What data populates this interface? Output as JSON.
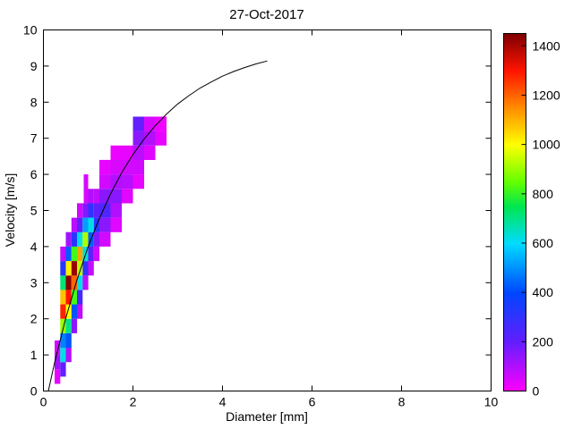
{
  "chart_data": {
    "type": "heatmap",
    "title": "27-Oct-2017",
    "xlabel": "Diameter [mm]",
    "ylabel": "Velocity [m/s]",
    "xlim": [
      0,
      10
    ],
    "ylim": [
      0,
      10
    ],
    "x_ticks": [
      0,
      2,
      4,
      6,
      8,
      10
    ],
    "y_ticks": [
      0,
      1,
      2,
      3,
      4,
      5,
      6,
      7,
      8,
      9,
      10
    ],
    "grid": false,
    "legend": "none",
    "colorbar": {
      "min": 0,
      "max": 1450,
      "ticks": [
        0,
        200,
        400,
        600,
        800,
        1000,
        1200,
        1400
      ],
      "position": "right"
    },
    "colormap_stops": [
      [
        0,
        255,
        0,
        255
      ],
      [
        200,
        100,
        30,
        255
      ],
      [
        400,
        0,
        70,
        255
      ],
      [
        600,
        0,
        220,
        255
      ],
      [
        750,
        0,
        230,
        80
      ],
      [
        850,
        100,
        255,
        0
      ],
      [
        1000,
        255,
        255,
        0
      ],
      [
        1150,
        255,
        140,
        0
      ],
      [
        1300,
        255,
        20,
        0
      ],
      [
        1450,
        128,
        0,
        0
      ]
    ],
    "cells": [
      [
        0.25,
        0.375,
        0.2,
        0.6,
        30
      ],
      [
        0.25,
        0.375,
        0.6,
        1.0,
        120
      ],
      [
        0.25,
        0.375,
        1.0,
        1.4,
        60
      ],
      [
        0.375,
        0.5,
        0.4,
        0.8,
        200
      ],
      [
        0.375,
        0.5,
        0.8,
        1.2,
        620
      ],
      [
        0.375,
        0.5,
        1.2,
        1.6,
        480
      ],
      [
        0.375,
        0.5,
        1.6,
        2.0,
        900
      ],
      [
        0.375,
        0.5,
        2.0,
        2.4,
        1280
      ],
      [
        0.375,
        0.5,
        2.4,
        2.8,
        1080
      ],
      [
        0.375,
        0.5,
        2.8,
        3.2,
        720
      ],
      [
        0.375,
        0.5,
        3.2,
        3.6,
        320
      ],
      [
        0.375,
        0.5,
        3.6,
        4.0,
        80
      ],
      [
        0.5,
        0.625,
        0.8,
        1.2,
        100
      ],
      [
        0.5,
        0.625,
        1.2,
        1.6,
        420
      ],
      [
        0.5,
        0.625,
        1.6,
        2.0,
        700
      ],
      [
        0.5,
        0.625,
        2.0,
        2.4,
        1000
      ],
      [
        0.5,
        0.625,
        2.4,
        2.8,
        1300
      ],
      [
        0.5,
        0.625,
        2.8,
        3.2,
        1440
      ],
      [
        0.5,
        0.625,
        3.2,
        3.6,
        1020
      ],
      [
        0.5,
        0.625,
        3.6,
        4.0,
        430
      ],
      [
        0.5,
        0.625,
        4.0,
        4.4,
        120
      ],
      [
        0.625,
        0.75,
        1.6,
        2.0,
        150
      ],
      [
        0.625,
        0.75,
        2.0,
        2.4,
        420
      ],
      [
        0.625,
        0.75,
        2.4,
        2.8,
        820
      ],
      [
        0.625,
        0.75,
        2.8,
        3.2,
        1200
      ],
      [
        0.625,
        0.75,
        3.2,
        3.6,
        1420
      ],
      [
        0.625,
        0.75,
        3.6,
        4.0,
        820
      ],
      [
        0.625,
        0.75,
        4.0,
        4.4,
        320
      ],
      [
        0.625,
        0.75,
        4.4,
        4.8,
        90
      ],
      [
        0.75,
        0.875,
        2.0,
        2.4,
        80
      ],
      [
        0.75,
        0.875,
        2.4,
        2.8,
        260
      ],
      [
        0.75,
        0.875,
        2.8,
        3.2,
        620
      ],
      [
        0.75,
        0.875,
        3.2,
        3.6,
        930
      ],
      [
        0.75,
        0.875,
        3.6,
        4.0,
        1120
      ],
      [
        0.75,
        0.875,
        4.0,
        4.4,
        620
      ],
      [
        0.75,
        0.875,
        4.4,
        4.8,
        210
      ],
      [
        0.75,
        0.875,
        4.8,
        5.2,
        60
      ],
      [
        0.875,
        1.0,
        2.8,
        3.2,
        90
      ],
      [
        0.875,
        1.0,
        3.2,
        3.6,
        300
      ],
      [
        0.875,
        1.0,
        3.6,
        4.0,
        640
      ],
      [
        0.875,
        1.0,
        4.0,
        4.4,
        920
      ],
      [
        0.875,
        1.0,
        4.4,
        4.8,
        520
      ],
      [
        0.875,
        1.0,
        4.8,
        5.2,
        160
      ],
      [
        0.9,
        1.0,
        5.2,
        6.0,
        50
      ],
      [
        1.0,
        1.125,
        3.2,
        3.6,
        70
      ],
      [
        1.0,
        1.125,
        3.6,
        4.0,
        210
      ],
      [
        1.0,
        1.125,
        4.0,
        4.4,
        430
      ],
      [
        1.0,
        1.125,
        4.4,
        4.8,
        620
      ],
      [
        1.0,
        1.125,
        4.8,
        5.2,
        310
      ],
      [
        1.0,
        1.125,
        5.2,
        5.6,
        100
      ],
      [
        1.125,
        1.25,
        3.6,
        4.0,
        60
      ],
      [
        1.125,
        1.25,
        4.0,
        4.4,
        160
      ],
      [
        1.125,
        1.25,
        4.4,
        4.8,
        310
      ],
      [
        1.125,
        1.25,
        4.8,
        5.2,
        210
      ],
      [
        1.125,
        1.25,
        5.2,
        5.6,
        80
      ],
      [
        1.25,
        1.5,
        4.0,
        4.4,
        60
      ],
      [
        1.25,
        1.5,
        4.4,
        4.8,
        150
      ],
      [
        1.25,
        1.5,
        4.8,
        5.2,
        240
      ],
      [
        1.25,
        1.5,
        5.2,
        5.6,
        150
      ],
      [
        1.25,
        1.5,
        5.6,
        6.0,
        60
      ],
      [
        1.25,
        1.5,
        6.0,
        6.4,
        30
      ],
      [
        1.5,
        1.75,
        4.4,
        4.8,
        40
      ],
      [
        1.5,
        1.75,
        4.8,
        5.2,
        100
      ],
      [
        1.5,
        1.75,
        5.2,
        5.6,
        150
      ],
      [
        1.5,
        1.75,
        5.6,
        6.0,
        100
      ],
      [
        1.5,
        1.75,
        6.0,
        6.4,
        50
      ],
      [
        1.5,
        1.75,
        6.4,
        6.8,
        25
      ],
      [
        1.75,
        2.0,
        5.2,
        5.6,
        40
      ],
      [
        1.75,
        2.0,
        5.6,
        6.0,
        90
      ],
      [
        1.75,
        2.0,
        6.0,
        6.4,
        60
      ],
      [
        1.75,
        2.0,
        6.4,
        6.8,
        30
      ],
      [
        2.0,
        2.25,
        5.6,
        6.0,
        30
      ],
      [
        2.0,
        2.25,
        6.0,
        6.4,
        60
      ],
      [
        2.0,
        2.25,
        6.4,
        6.8,
        90
      ],
      [
        2.0,
        2.25,
        6.8,
        7.2,
        150
      ],
      [
        2.0,
        2.25,
        7.2,
        7.6,
        200
      ],
      [
        2.25,
        2.5,
        6.4,
        6.8,
        40
      ],
      [
        2.25,
        2.5,
        6.8,
        7.2,
        100
      ],
      [
        2.25,
        2.5,
        7.2,
        7.6,
        50
      ],
      [
        2.5,
        2.75,
        6.8,
        7.2,
        30
      ],
      [
        2.5,
        2.75,
        7.2,
        7.6,
        20
      ]
    ],
    "curve": {
      "name": "terminal-velocity-curve",
      "color": "#000000",
      "points": [
        [
          0.11,
          0.0
        ],
        [
          0.25,
          0.79
        ],
        [
          0.5,
          2.02
        ],
        [
          0.75,
          3.08
        ],
        [
          1.0,
          4.0
        ],
        [
          1.25,
          4.78
        ],
        [
          1.5,
          5.46
        ],
        [
          1.75,
          6.05
        ],
        [
          2.0,
          6.55
        ],
        [
          2.25,
          6.98
        ],
        [
          2.5,
          7.35
        ],
        [
          2.75,
          7.67
        ],
        [
          3.0,
          7.95
        ],
        [
          3.25,
          8.18
        ],
        [
          3.5,
          8.39
        ],
        [
          3.75,
          8.56
        ],
        [
          4.0,
          8.72
        ],
        [
          4.25,
          8.85
        ],
        [
          4.5,
          8.96
        ],
        [
          4.75,
          9.06
        ],
        [
          5.0,
          9.14
        ]
      ]
    }
  }
}
